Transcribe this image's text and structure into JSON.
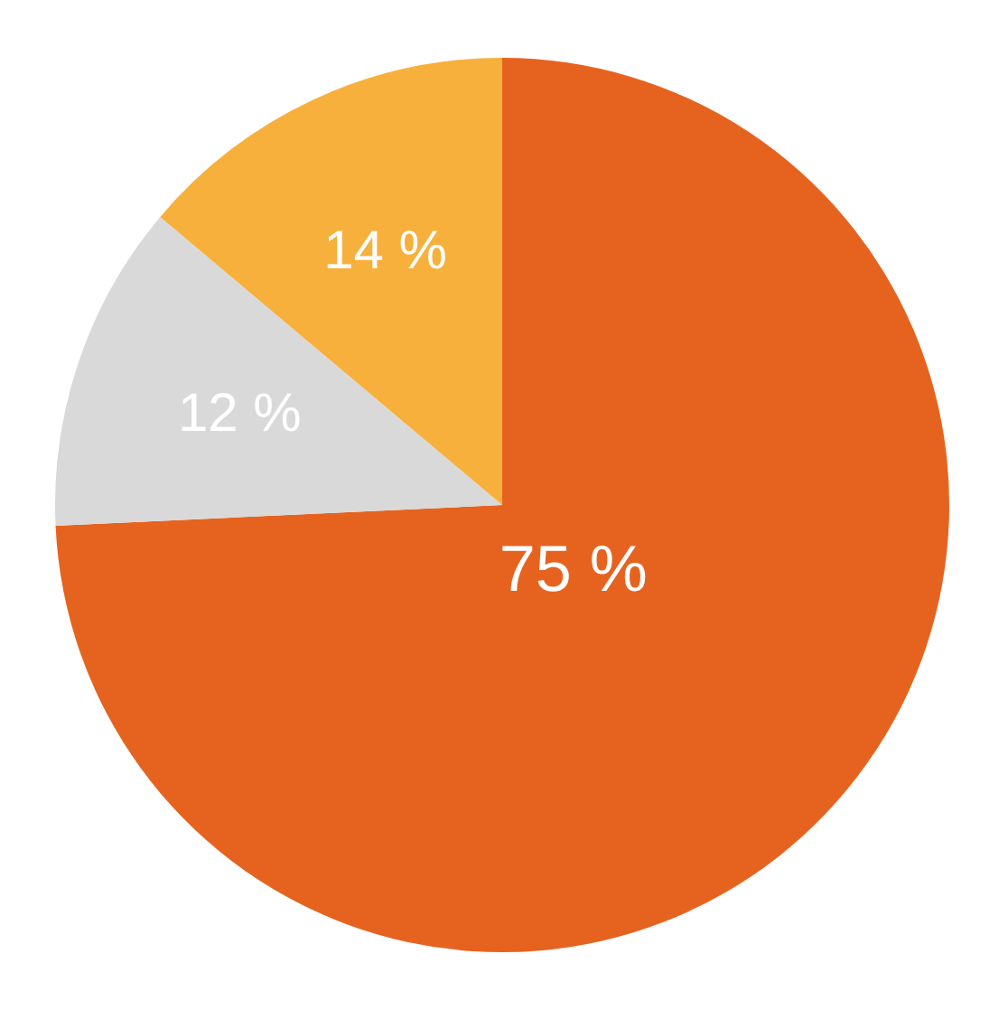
{
  "chart_data": {
    "type": "pie",
    "categories": [
      null,
      null,
      null
    ],
    "values": [
      75,
      12,
      14
    ],
    "colors": [
      "#e6631f",
      "#d9d9d9",
      "#f8b03c"
    ],
    "value_labels": [
      "75 %",
      "12 %",
      "14 %"
    ],
    "legend": false
  }
}
